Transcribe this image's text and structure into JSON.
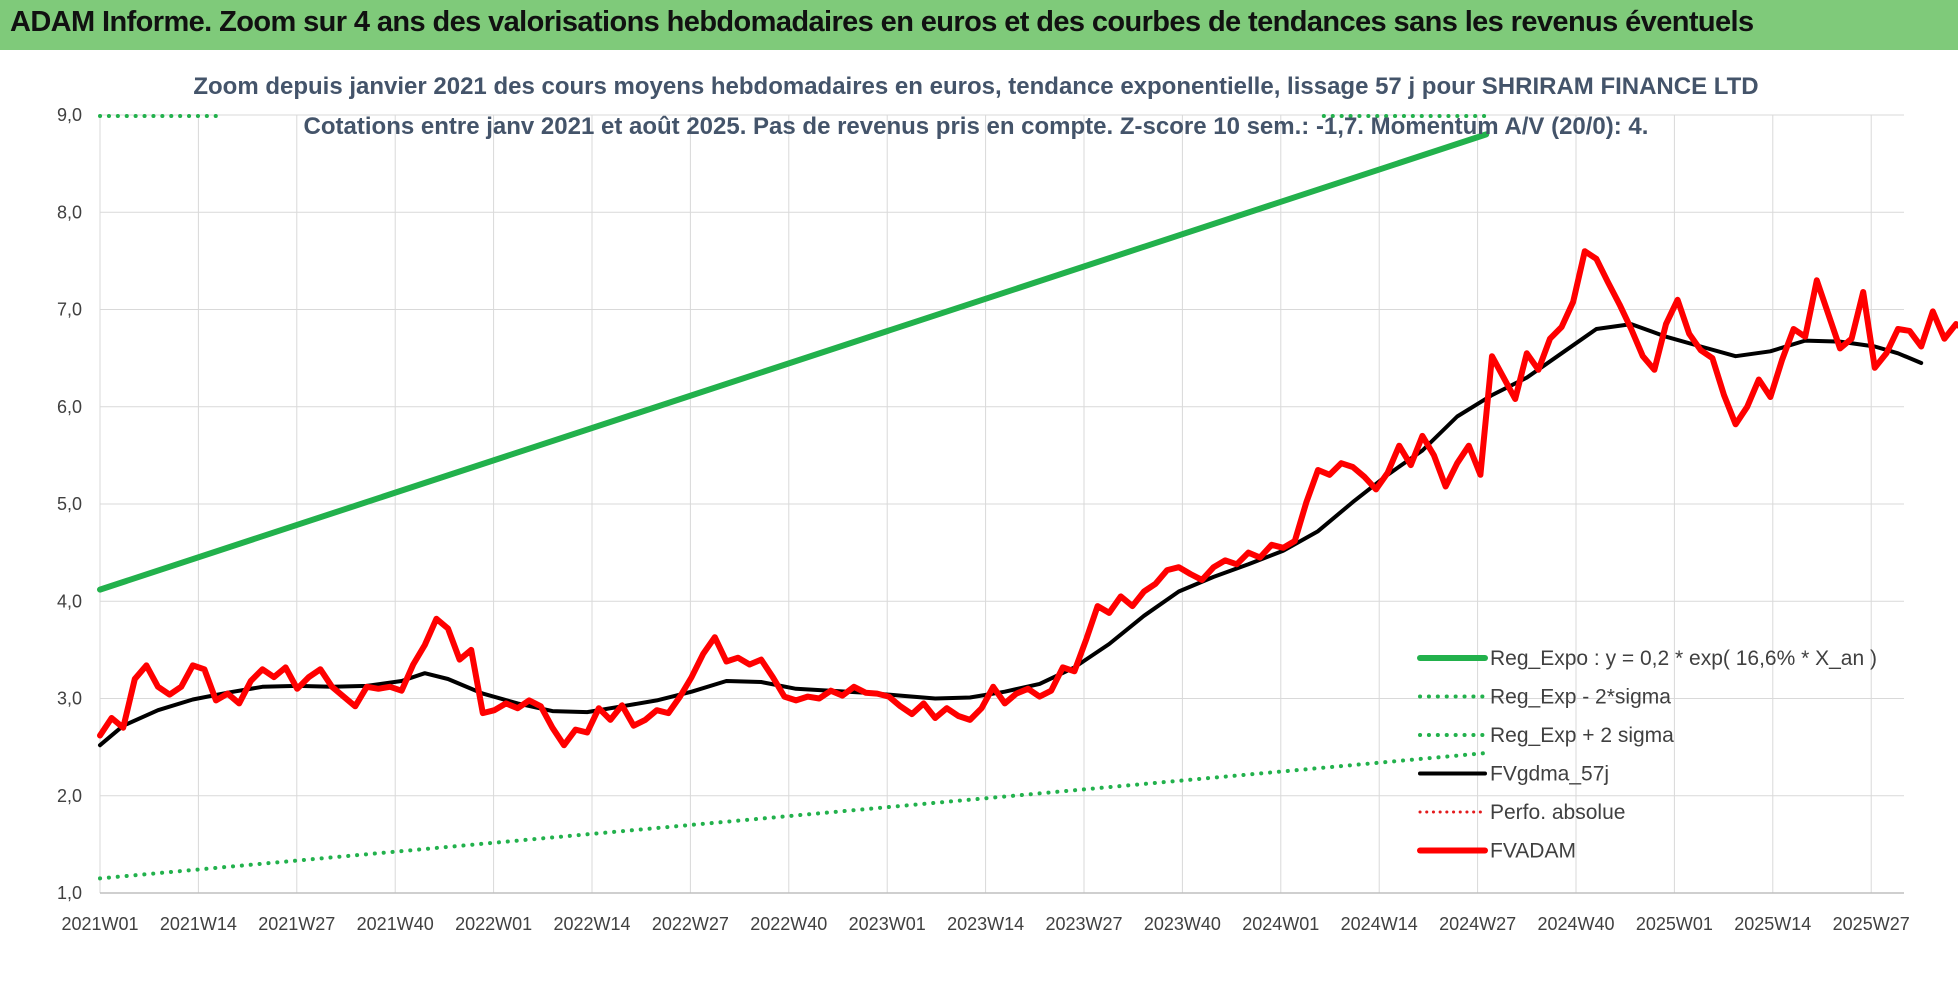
{
  "header": {
    "title": "ADAM Informe. Zoom sur 4 ans des valorisations hebdomadaires en euros et des courbes de tendances sans les revenus éventuels"
  },
  "chart_data": {
    "type": "line",
    "subtitle_line1": "Zoom depuis janvier 2021 des cours moyens hebdomadaires en euros, tendance exponentielle, lissage 57 j pour SHRIRAM FINANCE LTD",
    "subtitle_line2": "Cotations entre janv 2021 et août 2025.  Pas de revenus pris en compte. Z-score 10 sem.: -1,7. Momentum A/V (20/0): 4.",
    "ylim": [
      1.0,
      9.0
    ],
    "yticks": [
      "1,0",
      "2,0",
      "3,0",
      "4,0",
      "5,0",
      "6,0",
      "7,0",
      "8,0",
      "9,0"
    ],
    "xticks": [
      "2021W01",
      "2021W14",
      "2021W27",
      "2021W40",
      "2022W01",
      "2022W14",
      "2022W27",
      "2022W40",
      "2023W01",
      "2023W14",
      "2023W27",
      "2023W40",
      "2024W01",
      "2024W14",
      "2024W27",
      "2024W40",
      "2025W01",
      "2025W14",
      "2025W27"
    ],
    "x_count": 240,
    "grid": true,
    "legend_position": "bottom-right",
    "series": [
      {
        "name": "Reg_Expo : y = 0,2 * exp( 16,6% *  X_an )",
        "color": "#22b14c",
        "style": "solid",
        "width": 6,
        "points": [
          [
            0,
            4.12
          ],
          [
            239,
            8.8
          ]
        ]
      },
      {
        "name": "Reg_Exp - 2*sigma",
        "color": "#22b14c",
        "style": "dotted",
        "width": 4,
        "points": [
          [
            0,
            1.15
          ],
          [
            239,
            2.44
          ]
        ]
      },
      {
        "name": "Reg_Exp + 2 sigma",
        "color": "#22b14c",
        "style": "dotted",
        "width": 4,
        "points": [
          [
            0,
            8.99
          ],
          [
            21,
            8.99
          ]
        ],
        "points_right": [
          [
            211,
            8.99
          ],
          [
            239,
            8.99
          ]
        ]
      },
      {
        "name": "FVgdma_57j",
        "color": "#000000",
        "style": "solid",
        "width": 4,
        "points": [
          [
            0,
            2.52
          ],
          [
            4,
            2.72
          ],
          [
            10,
            2.88
          ],
          [
            16,
            2.99
          ],
          [
            22,
            3.06
          ],
          [
            28,
            3.12
          ],
          [
            34,
            3.13
          ],
          [
            40,
            3.12
          ],
          [
            46,
            3.13
          ],
          [
            52,
            3.18
          ],
          [
            56,
            3.26
          ],
          [
            60,
            3.2
          ],
          [
            66,
            3.05
          ],
          [
            72,
            2.95
          ],
          [
            78,
            2.87
          ],
          [
            84,
            2.86
          ],
          [
            90,
            2.92
          ],
          [
            96,
            2.98
          ],
          [
            102,
            3.07
          ],
          [
            108,
            3.18
          ],
          [
            114,
            3.17
          ],
          [
            120,
            3.1
          ],
          [
            126,
            3.08
          ],
          [
            132,
            3.06
          ],
          [
            138,
            3.03
          ],
          [
            144,
            3.0
          ],
          [
            150,
            3.01
          ],
          [
            156,
            3.07
          ],
          [
            162,
            3.15
          ],
          [
            168,
            3.32
          ],
          [
            174,
            3.56
          ],
          [
            180,
            3.85
          ],
          [
            186,
            4.1
          ],
          [
            192,
            4.25
          ],
          [
            198,
            4.38
          ],
          [
            204,
            4.52
          ],
          [
            210,
            4.72
          ],
          [
            216,
            5.02
          ],
          [
            222,
            5.3
          ],
          [
            228,
            5.55
          ],
          [
            234,
            5.9
          ],
          [
            240,
            6.12
          ],
          [
            246,
            6.3
          ],
          [
            252,
            6.55
          ],
          [
            258,
            6.8
          ],
          [
            264,
            6.85
          ],
          [
            270,
            6.72
          ],
          [
            276,
            6.62
          ],
          [
            282,
            6.52
          ],
          [
            288,
            6.57
          ],
          [
            294,
            6.68
          ],
          [
            300,
            6.67
          ],
          [
            306,
            6.62
          ],
          [
            310,
            6.55
          ],
          [
            314,
            6.45
          ]
        ]
      },
      {
        "name": "Perfo. absolue",
        "color": "#e31a1c",
        "style": "dotted",
        "width": 3,
        "points": []
      },
      {
        "name": "FVADAM",
        "color": "#ff0000",
        "style": "solid",
        "width": 6,
        "points": [
          [
            0,
            2.62
          ],
          [
            2,
            2.8
          ],
          [
            4,
            2.7
          ],
          [
            6,
            3.2
          ],
          [
            8,
            3.34
          ],
          [
            10,
            3.12
          ],
          [
            12,
            3.04
          ],
          [
            14,
            3.12
          ],
          [
            16,
            3.34
          ],
          [
            18,
            3.3
          ],
          [
            20,
            2.98
          ],
          [
            22,
            3.05
          ],
          [
            24,
            2.95
          ],
          [
            26,
            3.18
          ],
          [
            28,
            3.3
          ],
          [
            30,
            3.22
          ],
          [
            32,
            3.32
          ],
          [
            34,
            3.1
          ],
          [
            36,
            3.22
          ],
          [
            38,
            3.3
          ],
          [
            40,
            3.12
          ],
          [
            42,
            3.02
          ],
          [
            44,
            2.92
          ],
          [
            46,
            3.12
          ],
          [
            48,
            3.1
          ],
          [
            50,
            3.12
          ],
          [
            52,
            3.08
          ],
          [
            54,
            3.35
          ],
          [
            56,
            3.55
          ],
          [
            58,
            3.82
          ],
          [
            60,
            3.72
          ],
          [
            62,
            3.4
          ],
          [
            64,
            3.5
          ],
          [
            66,
            2.85
          ],
          [
            68,
            2.88
          ],
          [
            70,
            2.95
          ],
          [
            72,
            2.9
          ],
          [
            74,
            2.98
          ],
          [
            76,
            2.92
          ],
          [
            78,
            2.7
          ],
          [
            80,
            2.52
          ],
          [
            82,
            2.68
          ],
          [
            84,
            2.65
          ],
          [
            86,
            2.9
          ],
          [
            88,
            2.78
          ],
          [
            90,
            2.93
          ],
          [
            92,
            2.72
          ],
          [
            94,
            2.78
          ],
          [
            96,
            2.88
          ],
          [
            98,
            2.85
          ],
          [
            100,
            3.02
          ],
          [
            102,
            3.22
          ],
          [
            104,
            3.46
          ],
          [
            106,
            3.63
          ],
          [
            108,
            3.38
          ],
          [
            110,
            3.42
          ],
          [
            112,
            3.35
          ],
          [
            114,
            3.4
          ],
          [
            116,
            3.22
          ],
          [
            118,
            3.02
          ],
          [
            120,
            2.98
          ],
          [
            122,
            3.02
          ],
          [
            124,
            3.0
          ],
          [
            126,
            3.08
          ],
          [
            128,
            3.03
          ],
          [
            130,
            3.12
          ],
          [
            132,
            3.06
          ],
          [
            134,
            3.05
          ],
          [
            136,
            3.02
          ],
          [
            138,
            2.92
          ],
          [
            140,
            2.84
          ],
          [
            142,
            2.95
          ],
          [
            144,
            2.8
          ],
          [
            146,
            2.9
          ],
          [
            148,
            2.82
          ],
          [
            150,
            2.78
          ],
          [
            152,
            2.9
          ],
          [
            154,
            3.12
          ],
          [
            156,
            2.95
          ],
          [
            158,
            3.05
          ],
          [
            160,
            3.1
          ],
          [
            162,
            3.02
          ],
          [
            164,
            3.08
          ],
          [
            166,
            3.32
          ],
          [
            168,
            3.28
          ],
          [
            170,
            3.6
          ],
          [
            172,
            3.95
          ],
          [
            174,
            3.88
          ],
          [
            176,
            4.05
          ],
          [
            178,
            3.95
          ],
          [
            180,
            4.1
          ],
          [
            182,
            4.18
          ],
          [
            184,
            4.32
          ],
          [
            186,
            4.35
          ],
          [
            188,
            4.28
          ],
          [
            190,
            4.22
          ],
          [
            192,
            4.35
          ],
          [
            194,
            4.42
          ],
          [
            196,
            4.38
          ],
          [
            198,
            4.5
          ],
          [
            200,
            4.45
          ],
          [
            202,
            4.58
          ],
          [
            204,
            4.55
          ],
          [
            206,
            4.62
          ],
          [
            208,
            5.02
          ],
          [
            210,
            5.35
          ],
          [
            212,
            5.3
          ],
          [
            214,
            5.42
          ],
          [
            216,
            5.38
          ],
          [
            218,
            5.28
          ],
          [
            220,
            5.15
          ],
          [
            222,
            5.32
          ],
          [
            224,
            5.6
          ],
          [
            226,
            5.4
          ],
          [
            228,
            5.7
          ],
          [
            230,
            5.5
          ],
          [
            232,
            5.18
          ],
          [
            234,
            5.42
          ],
          [
            236,
            5.6
          ],
          [
            238,
            5.3
          ],
          [
            240,
            6.52
          ],
          [
            242,
            6.3
          ],
          [
            244,
            6.08
          ],
          [
            246,
            6.55
          ],
          [
            248,
            6.38
          ],
          [
            250,
            6.7
          ],
          [
            252,
            6.82
          ],
          [
            254,
            7.08
          ],
          [
            256,
            7.6
          ],
          [
            258,
            7.52
          ],
          [
            260,
            7.28
          ],
          [
            262,
            7.05
          ],
          [
            264,
            6.8
          ],
          [
            266,
            6.52
          ],
          [
            268,
            6.38
          ],
          [
            270,
            6.85
          ],
          [
            272,
            7.1
          ],
          [
            274,
            6.75
          ],
          [
            276,
            6.58
          ],
          [
            278,
            6.5
          ],
          [
            280,
            6.12
          ],
          [
            282,
            5.82
          ],
          [
            284,
            6.0
          ],
          [
            286,
            6.28
          ],
          [
            288,
            6.1
          ],
          [
            290,
            6.48
          ],
          [
            292,
            6.8
          ],
          [
            294,
            6.72
          ],
          [
            296,
            7.3
          ],
          [
            298,
            6.95
          ],
          [
            300,
            6.6
          ],
          [
            302,
            6.7
          ],
          [
            304,
            7.18
          ],
          [
            306,
            6.4
          ],
          [
            308,
            6.55
          ],
          [
            310,
            6.8
          ],
          [
            312,
            6.78
          ],
          [
            314,
            6.62
          ],
          [
            316,
            6.98
          ],
          [
            318,
            6.7
          ],
          [
            320,
            6.85
          ],
          [
            322,
            6.78
          ],
          [
            324,
            6.68
          ],
          [
            326,
            6.35
          ],
          [
            328,
            6.28
          ]
        ]
      }
    ]
  }
}
